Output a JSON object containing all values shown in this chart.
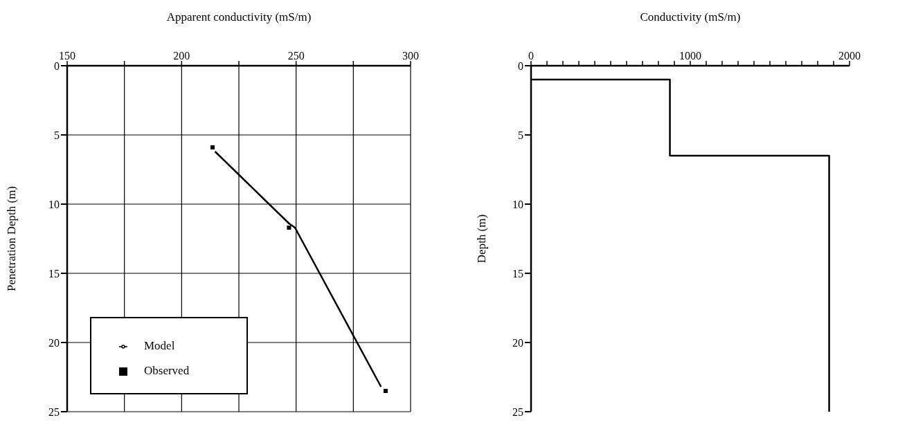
{
  "chart_data": [
    {
      "type": "line",
      "xlabel": "Apparent conductivity (mS/m)",
      "ylabel": "Penetration Depth (m)",
      "xlim": [
        150,
        300
      ],
      "xticks": [
        150,
        {
          "value": 175,
          "label": null
        },
        200,
        {
          "value": 225,
          "label": null
        },
        250,
        {
          "value": 275,
          "label": null
        },
        300
      ],
      "ylim": [
        25,
        0
      ],
      "yticks": [
        0,
        5,
        10,
        15,
        20,
        25
      ],
      "grid": true,
      "legend": "bottom left",
      "series": [
        {
          "name": "Observed",
          "type": "scatter",
          "marker": "square",
          "color": "#000000",
          "x": [
            213.5,
            246.9,
            289.1
          ],
          "values": [
            5.9,
            11.7,
            23.5
          ]
        },
        {
          "name": "Model",
          "type": "line",
          "marker": "none",
          "color": "#000000",
          "x": [
            214.6,
            246.9,
            249.5,
            287.1
          ],
          "values": [
            6.2,
            11.4,
            11.7,
            23.2
          ]
        }
      ]
    },
    {
      "type": "line",
      "xlabel": "Conductivity (mS/m)",
      "ylabel": "Depth (m)",
      "xlim": [
        0,
        2000
      ],
      "xticks": [
        0,
        {
          "value": 100,
          "label": null
        },
        {
          "value": 200,
          "label": null
        },
        {
          "value": 300,
          "label": null
        },
        {
          "value": 400,
          "label": null
        },
        {
          "value": 500,
          "label": null
        },
        {
          "value": 600,
          "label": null
        },
        {
          "value": 700,
          "label": null
        },
        {
          "value": 800,
          "label": null
        },
        {
          "value": 900,
          "label": null
        },
        1000,
        {
          "value": 1100,
          "label": null
        },
        {
          "value": 1200,
          "label": null
        },
        {
          "value": 1300,
          "label": null
        },
        {
          "value": 1400,
          "label": null
        },
        {
          "value": 1500,
          "label": null
        },
        {
          "value": 1600,
          "label": null
        },
        {
          "value": 1700,
          "label": null
        },
        {
          "value": 1800,
          "label": null
        },
        {
          "value": 1900,
          "label": null
        },
        2000
      ],
      "ylim": [
        25,
        0
      ],
      "yticks": [
        0,
        5,
        10,
        15,
        20,
        25
      ],
      "series": [
        {
          "type": "line",
          "marker": "none",
          "color": "#000000",
          "x": [
            0,
            872,
            872,
            1872,
            1872
          ],
          "values": [
            1.0,
            1.0,
            6.5,
            6.5,
            25
          ]
        }
      ]
    }
  ]
}
